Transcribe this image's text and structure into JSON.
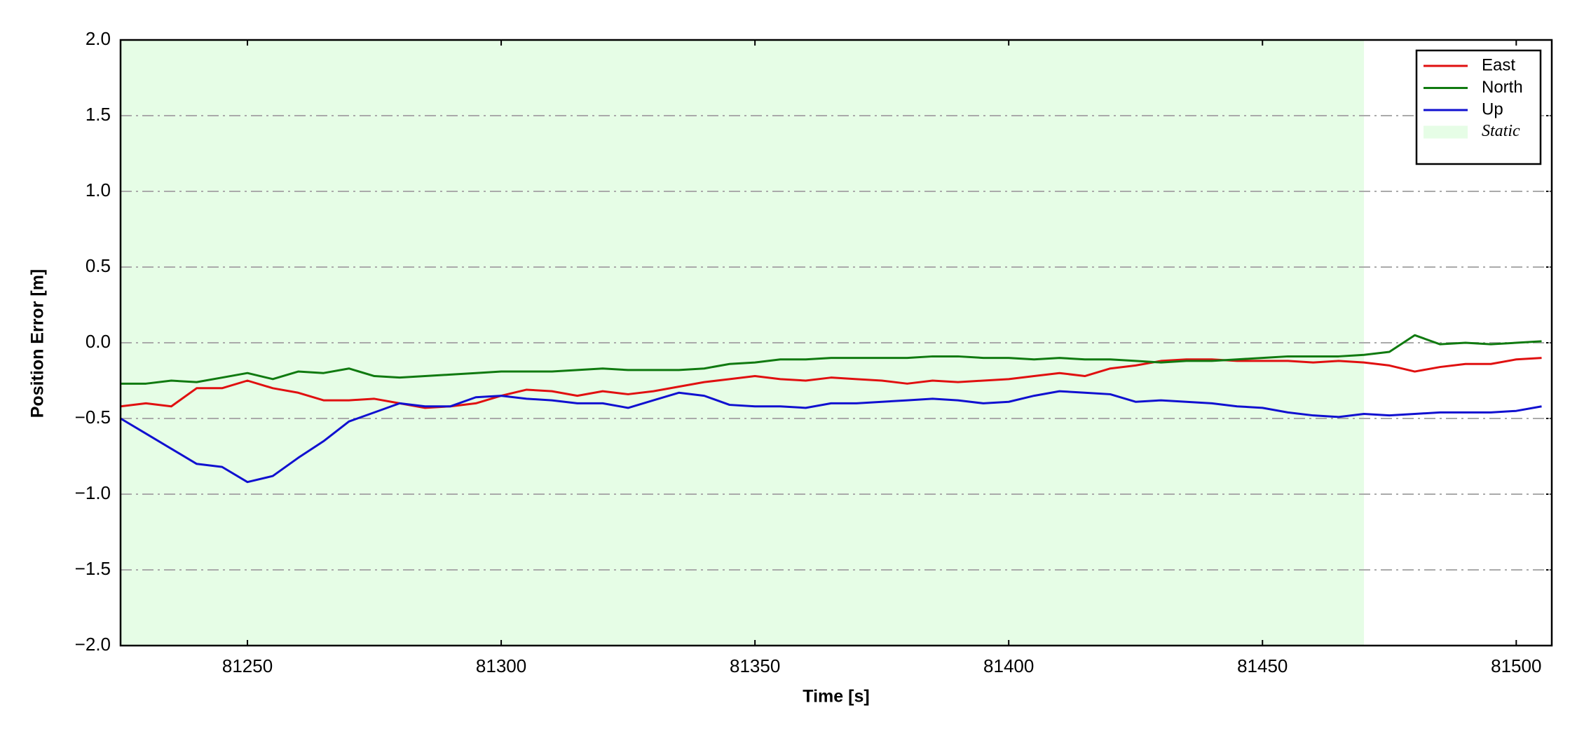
{
  "chart_data": {
    "type": "line",
    "x_label": "Time [s]",
    "y_label": "Position Error [m]",
    "x": [
      81225,
      81230,
      81235,
      81240,
      81245,
      81250,
      81255,
      81260,
      81265,
      81270,
      81275,
      81280,
      81285,
      81290,
      81295,
      81300,
      81305,
      81310,
      81315,
      81320,
      81325,
      81330,
      81335,
      81340,
      81345,
      81350,
      81355,
      81360,
      81365,
      81370,
      81375,
      81380,
      81385,
      81390,
      81395,
      81400,
      81405,
      81410,
      81415,
      81420,
      81425,
      81430,
      81435,
      81440,
      81445,
      81450,
      81455,
      81460,
      81465,
      81470,
      81475,
      81480,
      81485,
      81490,
      81495,
      81500,
      81505
    ],
    "series": [
      {
        "name": "East",
        "color": "#e01010",
        "values": [
          -0.42,
          -0.4,
          -0.42,
          -0.3,
          -0.3,
          -0.25,
          -0.3,
          -0.33,
          -0.38,
          -0.38,
          -0.37,
          -0.4,
          -0.43,
          -0.42,
          -0.4,
          -0.35,
          -0.31,
          -0.32,
          -0.35,
          -0.32,
          -0.34,
          -0.32,
          -0.29,
          -0.26,
          -0.24,
          -0.22,
          -0.24,
          -0.25,
          -0.23,
          -0.24,
          -0.25,
          -0.27,
          -0.25,
          -0.26,
          -0.25,
          -0.24,
          -0.22,
          -0.2,
          -0.22,
          -0.17,
          -0.15,
          -0.12,
          -0.11,
          -0.11,
          -0.12,
          -0.12,
          -0.12,
          -0.13,
          -0.12,
          -0.13,
          -0.15,
          -0.19,
          -0.16,
          -0.14,
          -0.14,
          -0.11,
          -0.1
        ]
      },
      {
        "name": "North",
        "color": "#107a10",
        "values": [
          -0.27,
          -0.27,
          -0.25,
          -0.26,
          -0.23,
          -0.2,
          -0.24,
          -0.19,
          -0.2,
          -0.17,
          -0.22,
          -0.23,
          -0.22,
          -0.21,
          -0.2,
          -0.19,
          -0.19,
          -0.19,
          -0.18,
          -0.17,
          -0.18,
          -0.18,
          -0.18,
          -0.17,
          -0.14,
          -0.13,
          -0.11,
          -0.11,
          -0.1,
          -0.1,
          -0.1,
          -0.1,
          -0.09,
          -0.09,
          -0.1,
          -0.1,
          -0.11,
          -0.1,
          -0.11,
          -0.11,
          -0.12,
          -0.13,
          -0.12,
          -0.12,
          -0.11,
          -0.1,
          -0.09,
          -0.09,
          -0.09,
          -0.08,
          -0.06,
          0.05,
          -0.01,
          0.0,
          -0.01,
          0.0,
          0.01
        ]
      },
      {
        "name": "Up",
        "color": "#1010d0",
        "values": [
          -0.5,
          -0.6,
          -0.7,
          -0.8,
          -0.82,
          -0.92,
          -0.88,
          -0.76,
          -0.65,
          -0.52,
          -0.46,
          -0.4,
          -0.42,
          -0.42,
          -0.36,
          -0.35,
          -0.37,
          -0.38,
          -0.4,
          -0.4,
          -0.43,
          -0.38,
          -0.33,
          -0.35,
          -0.41,
          -0.42,
          -0.42,
          -0.43,
          -0.4,
          -0.4,
          -0.39,
          -0.38,
          -0.37,
          -0.38,
          -0.4,
          -0.39,
          -0.35,
          -0.32,
          -0.33,
          -0.34,
          -0.39,
          -0.38,
          -0.39,
          -0.4,
          -0.42,
          -0.43,
          -0.46,
          -0.48,
          -0.49,
          -0.47,
          -0.48,
          -0.47,
          -0.46,
          -0.46,
          -0.46,
          -0.45,
          -0.42
        ]
      }
    ],
    "spans": [
      {
        "name": "Static",
        "x0": 81225,
        "x1": 81470,
        "color": "#e6fde6"
      }
    ],
    "xlim": [
      81225,
      81507
    ],
    "ylim": [
      -2.0,
      2.0
    ],
    "xticks": [
      81250,
      81300,
      81350,
      81400,
      81450,
      81500
    ],
    "yticks": [
      {
        "value": -2.0,
        "label": "−2.0"
      },
      {
        "value": -1.5,
        "label": "−1.5"
      },
      {
        "value": -1.0,
        "label": "−1.0"
      },
      {
        "value": -0.5,
        "label": "−0.5"
      },
      {
        "value": 0.0,
        "label": "0.0"
      },
      {
        "value": 0.5,
        "label": "0.5"
      },
      {
        "value": 1.0,
        "label": "1.0"
      },
      {
        "value": 1.5,
        "label": "1.5"
      },
      {
        "value": 2.0,
        "label": "2.0"
      }
    ],
    "grid": true,
    "legend": "upper right"
  }
}
